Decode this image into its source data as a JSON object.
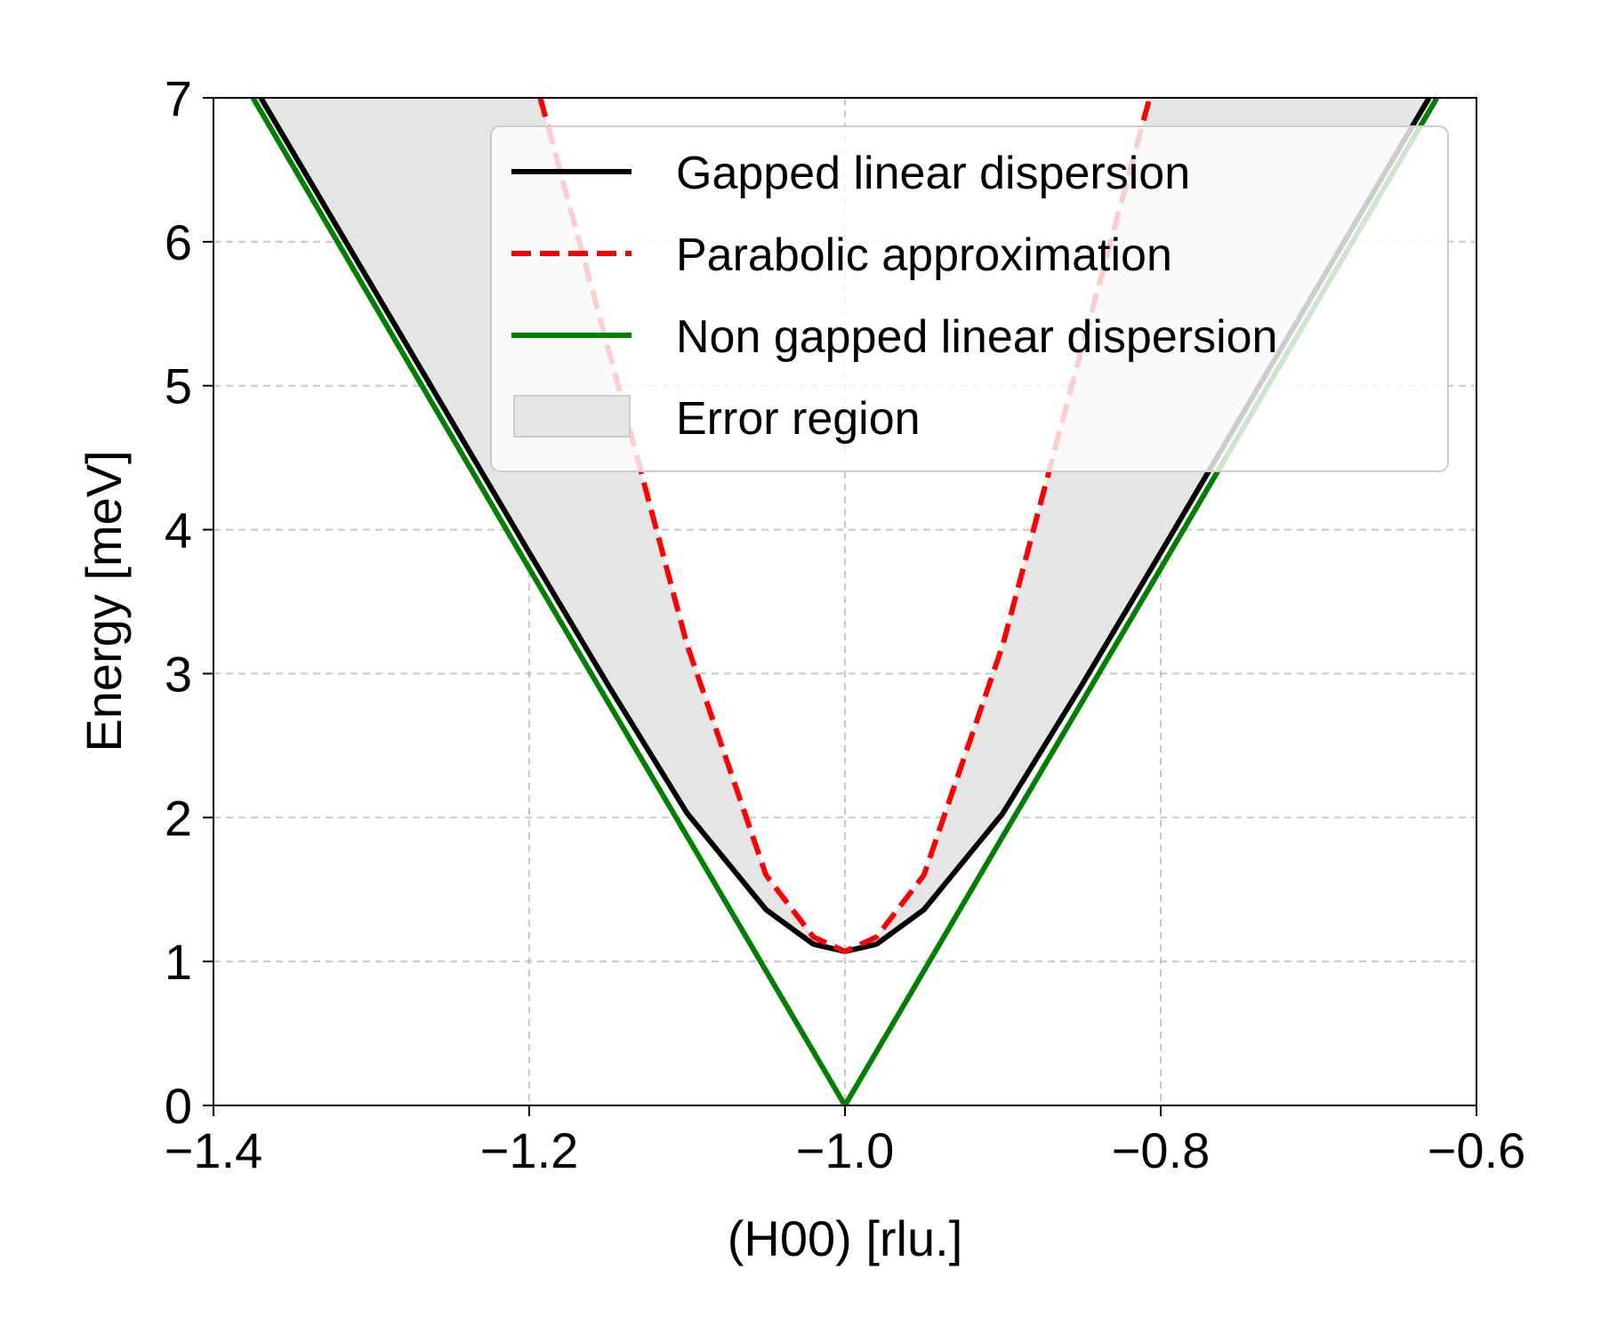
{
  "chart_data": {
    "type": "line",
    "title": "",
    "xlabel": "(H00) [rlu.]",
    "ylabel": "Energy [meV]",
    "xlim": [
      -1.4,
      -0.6
    ],
    "ylim": [
      0,
      7
    ],
    "xticks": [
      -1.4,
      -1.2,
      -1.0,
      -0.8,
      -0.6
    ],
    "xtick_labels": [
      "−1.4",
      "−1.2",
      "−1.0",
      "−0.8",
      "−0.6"
    ],
    "yticks": [
      0,
      1,
      2,
      3,
      4,
      5,
      6,
      7
    ],
    "ytick_labels": [
      "0",
      "1",
      "2",
      "3",
      "4",
      "5",
      "6",
      "7"
    ],
    "grid": true,
    "legend_position": "top-right",
    "series": [
      {
        "name": "Gapped linear dispersion",
        "style": "solid",
        "color": "#000000",
        "x": [
          -1.37,
          -1.3,
          -1.2,
          -1.15,
          -1.1,
          -1.05,
          -1.02,
          -1.0,
          -0.98,
          -0.95,
          -0.9,
          -0.85,
          -0.8,
          -0.7,
          -0.63
        ],
        "y": [
          7.0,
          5.7,
          3.84,
          2.92,
          2.03,
          1.36,
          1.12,
          1.07,
          1.12,
          1.36,
          2.03,
          2.92,
          3.84,
          5.7,
          7.0
        ]
      },
      {
        "name": "Parabolic approximation",
        "style": "dashed",
        "color": "#ff0000",
        "x": [
          -1.193,
          -1.15,
          -1.1,
          -1.05,
          -1.02,
          -1.0,
          -0.98,
          -0.95,
          -0.9,
          -0.85,
          -0.807
        ],
        "y": [
          7.0,
          5.26,
          3.2,
          1.6,
          1.17,
          1.07,
          1.17,
          1.6,
          3.2,
          5.26,
          7.0
        ]
      },
      {
        "name": "Non gapped linear dispersion",
        "style": "solid",
        "color": "#008000",
        "x": [
          -1.375,
          -1.2,
          -1.1,
          -1.0,
          -0.9,
          -0.8,
          -0.625
        ],
        "y": [
          7.0,
          3.73,
          1.87,
          0.0,
          1.87,
          3.73,
          7.0
        ]
      }
    ],
    "fill_region": {
      "name": "Error region",
      "color": "#e5e5e5",
      "between": [
        "Gapped linear dispersion",
        "Parabolic approximation"
      ]
    }
  }
}
